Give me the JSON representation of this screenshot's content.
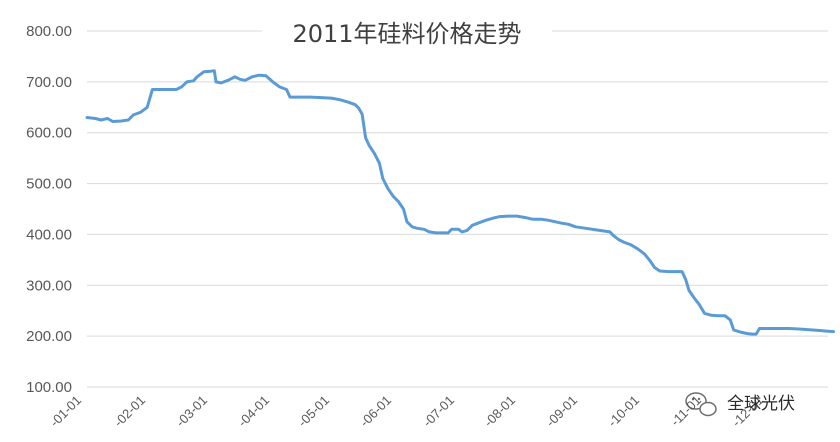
{
  "chart_data": {
    "type": "line",
    "title": "2011年硅料价格走势",
    "xlabel": "",
    "ylabel": "",
    "ylim": [
      100,
      800
    ],
    "yticks": [
      "800.00",
      "700.00",
      "600.00",
      "500.00",
      "400.00",
      "300.00",
      "200.00",
      "100.00"
    ],
    "grid": "horizontal",
    "x_tick_labels": [
      "-01-01",
      "-02-01",
      "-03-01",
      "-04-01",
      "-05-01",
      "-06-01",
      "-07-01",
      "-08-01",
      "-09-01",
      "-10-01",
      "-11-01",
      "-12-01"
    ],
    "series": [
      {
        "color": "#5b9bd5",
        "points": [
          [
            0,
            630
          ],
          [
            5,
            628
          ],
          [
            8,
            625
          ],
          [
            12,
            628
          ],
          [
            15,
            622
          ],
          [
            20,
            623
          ],
          [
            24,
            625
          ],
          [
            27,
            635
          ],
          [
            31,
            640
          ],
          [
            35,
            650
          ],
          [
            38,
            685
          ],
          [
            45,
            685
          ],
          [
            52,
            685
          ],
          [
            55,
            690
          ],
          [
            58,
            700
          ],
          [
            62,
            702
          ],
          [
            64,
            710
          ],
          [
            68,
            720
          ],
          [
            72,
            721
          ],
          [
            74,
            722
          ],
          [
            75,
            700
          ],
          [
            78,
            698
          ],
          [
            82,
            703
          ],
          [
            86,
            710
          ],
          [
            89,
            705
          ],
          [
            92,
            703
          ],
          [
            96,
            710
          ],
          [
            100,
            713
          ],
          [
            104,
            712
          ],
          [
            108,
            700
          ],
          [
            112,
            690
          ],
          [
            116,
            685
          ],
          [
            118,
            670
          ],
          [
            124,
            670
          ],
          [
            130,
            670
          ],
          [
            136,
            669
          ],
          [
            142,
            668
          ],
          [
            147,
            665
          ],
          [
            152,
            660
          ],
          [
            156,
            655
          ],
          [
            158,
            648
          ],
          [
            160,
            636
          ],
          [
            162,
            590
          ],
          [
            164,
            575
          ],
          [
            167,
            560
          ],
          [
            170,
            540
          ],
          [
            172,
            510
          ],
          [
            175,
            490
          ],
          [
            178,
            475
          ],
          [
            181,
            465
          ],
          [
            184,
            450
          ],
          [
            186,
            425
          ],
          [
            189,
            415
          ],
          [
            192,
            412
          ],
          [
            196,
            410
          ],
          [
            199,
            405
          ],
          [
            203,
            403
          ],
          [
            207,
            403
          ],
          [
            210,
            403
          ],
          [
            212,
            410
          ],
          [
            216,
            410
          ],
          [
            218,
            405
          ],
          [
            221,
            408
          ],
          [
            224,
            418
          ],
          [
            228,
            423
          ],
          [
            232,
            428
          ],
          [
            236,
            432
          ],
          [
            240,
            435
          ],
          [
            245,
            436
          ],
          [
            250,
            436
          ],
          [
            255,
            433
          ],
          [
            259,
            430
          ],
          [
            264,
            430
          ],
          [
            268,
            428
          ],
          [
            272,
            425
          ],
          [
            276,
            422
          ],
          [
            280,
            420
          ],
          [
            284,
            415
          ],
          [
            288,
            413
          ],
          [
            292,
            411
          ],
          [
            296,
            409
          ],
          [
            300,
            407
          ],
          [
            304,
            405
          ],
          [
            306,
            398
          ],
          [
            309,
            390
          ],
          [
            312,
            385
          ],
          [
            316,
            380
          ],
          [
            320,
            372
          ],
          [
            324,
            362
          ],
          [
            327,
            350
          ],
          [
            330,
            335
          ],
          [
            333,
            328
          ],
          [
            338,
            327
          ],
          [
            342,
            327
          ],
          [
            346,
            327
          ],
          [
            348,
            312
          ],
          [
            350,
            290
          ],
          [
            353,
            275
          ],
          [
            356,
            262
          ],
          [
            359,
            245
          ],
          [
            363,
            241
          ],
          [
            367,
            240
          ],
          [
            371,
            240
          ],
          [
            374,
            232
          ],
          [
            376,
            212
          ],
          [
            380,
            208
          ],
          [
            384,
            205
          ],
          [
            387,
            204
          ],
          [
            389,
            204
          ],
          [
            391,
            215
          ],
          [
            396,
            215
          ],
          [
            402,
            215
          ],
          [
            408,
            215
          ],
          [
            414,
            214
          ],
          [
            418,
            213
          ],
          [
            422,
            212
          ],
          [
            426,
            211
          ],
          [
            430,
            210
          ],
          [
            434,
            209
          ]
        ]
      }
    ]
  },
  "watermark": {
    "text": "全球光伏",
    "icon": "wechat-icon"
  }
}
